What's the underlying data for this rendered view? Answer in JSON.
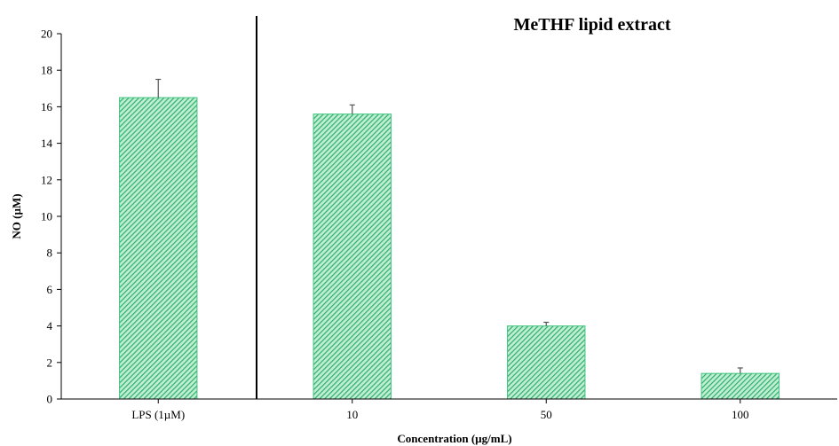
{
  "chart_data": {
    "type": "bar",
    "title": "MeTHF lipid extract",
    "xlabel": "Concentration (µg/mL)",
    "ylabel": "NO (µM)",
    "ylim": [
      0,
      20
    ],
    "yticks": [
      "0",
      "2",
      "4",
      "6",
      "8",
      "10",
      "12",
      "14",
      "16",
      "18",
      "20"
    ],
    "categories": [
      "LPS (1µM)",
      "10",
      "50",
      "100"
    ],
    "values": [
      16.5,
      15.6,
      4.0,
      1.4
    ],
    "errors": [
      1.0,
      0.5,
      0.2,
      0.3
    ],
    "grid": false,
    "bar_color": "#3fc47f",
    "bar_pattern": "diagonal-hatch",
    "separator_after_category": 0
  }
}
